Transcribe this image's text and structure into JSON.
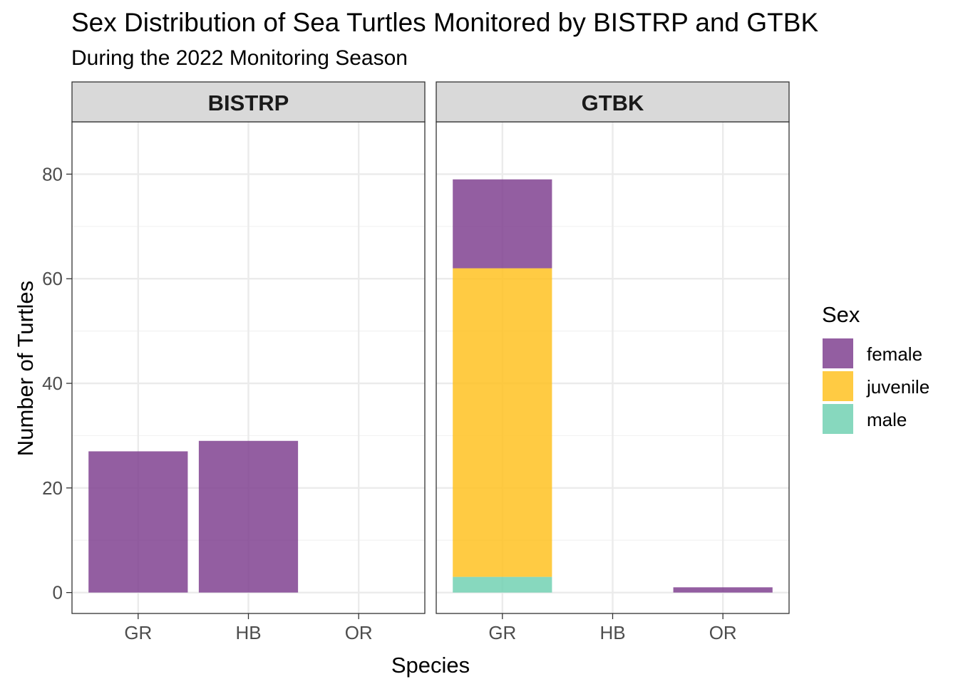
{
  "chart_data": {
    "type": "bar",
    "stacked": true,
    "title": "Sex Distribution of Sea Turtles Monitored by BISTRP and GTBK",
    "subtitle": "During the 2022 Monitoring Season",
    "xlabel": "Species",
    "ylabel": "Number of Turtles",
    "categories": [
      "GR",
      "HB",
      "OR"
    ],
    "ylim": [
      -4,
      90
    ],
    "yticks": [
      0,
      20,
      40,
      60,
      80
    ],
    "grid": true,
    "legend": {
      "title": "Sex",
      "position": "right",
      "entries": [
        {
          "name": "female",
          "color": "#7b3a8c"
        },
        {
          "name": "juvenile",
          "color": "#ffbf1a"
        },
        {
          "name": "male",
          "color": "#6dcfb0"
        }
      ]
    },
    "facets": [
      {
        "label": "BISTRP",
        "series": [
          {
            "name": "male",
            "values": [
              0,
              0,
              0
            ]
          },
          {
            "name": "juvenile",
            "values": [
              0,
              0,
              0
            ]
          },
          {
            "name": "female",
            "values": [
              27,
              29,
              0
            ]
          }
        ]
      },
      {
        "label": "GTBK",
        "series": [
          {
            "name": "male",
            "values": [
              3,
              0,
              0
            ]
          },
          {
            "name": "juvenile",
            "values": [
              59,
              0,
              0
            ]
          },
          {
            "name": "female",
            "values": [
              17,
              0,
              1
            ]
          }
        ]
      }
    ]
  }
}
